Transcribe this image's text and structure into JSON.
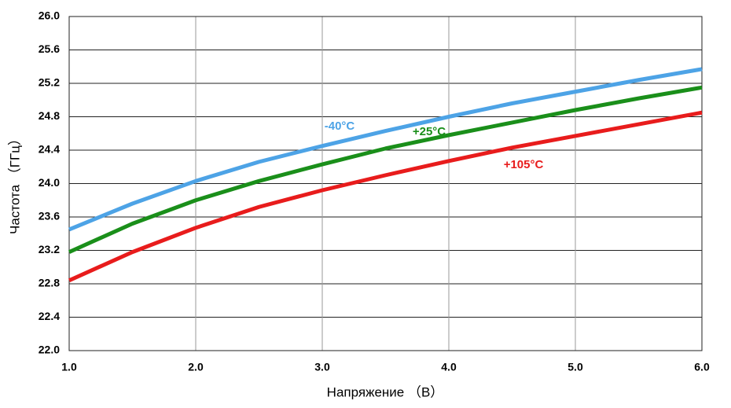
{
  "chart_data": {
    "type": "line",
    "x_label": "Напряжение （В）",
    "y_label": "Частота （ГГц）",
    "x": [
      1,
      1.5,
      2,
      2.5,
      3,
      3.5,
      4,
      4.5,
      5,
      5.5,
      6
    ],
    "series": [
      {
        "name": "-40°C",
        "color": "#4da3e6",
        "values": [
          23.45,
          23.76,
          24.03,
          24.26,
          24.45,
          24.63,
          24.8,
          24.96,
          25.1,
          25.24,
          25.37
        ]
      },
      {
        "name": "+25°C",
        "color": "#1a8f1a",
        "values": [
          23.18,
          23.52,
          23.8,
          24.03,
          24.23,
          24.42,
          24.58,
          24.73,
          24.88,
          25.02,
          25.15
        ]
      },
      {
        "name": "+105°C",
        "color": "#e81c1c",
        "values": [
          22.84,
          23.18,
          23.47,
          23.72,
          23.92,
          24.1,
          24.27,
          24.43,
          24.57,
          24.71,
          24.85
        ]
      }
    ],
    "xlim": [
      1,
      6
    ],
    "ylim": [
      22,
      26
    ],
    "xticks": [
      {
        "value": 1,
        "label": "1.0"
      },
      {
        "value": 2,
        "label": "2.0"
      },
      {
        "value": 3,
        "label": "3.0"
      },
      {
        "value": 4,
        "label": "4.0"
      },
      {
        "value": 5,
        "label": "5.0"
      },
      {
        "value": 6,
        "label": "6.0"
      }
    ],
    "yticks": [
      {
        "value": 22,
        "label": "22.0"
      },
      22.4,
      22.8,
      23.2,
      23.6,
      {
        "value": 24,
        "label": "24.0"
      },
      24.4,
      24.8,
      25.2,
      25.6,
      {
        "value": 26,
        "label": "26.0"
      }
    ],
    "grid": true
  }
}
